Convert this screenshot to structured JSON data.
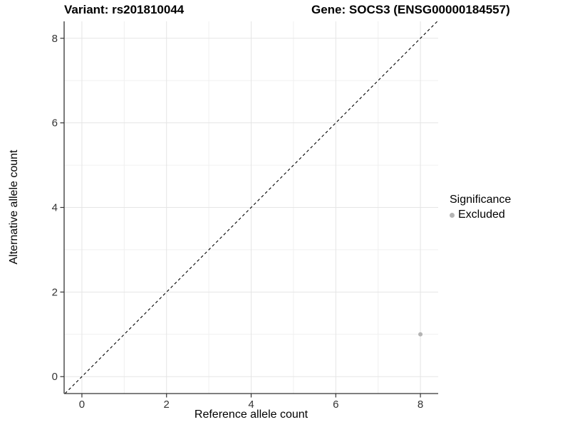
{
  "titles": {
    "variant": "Variant: rs201810044",
    "gene": "Gene: SOCS3 (ENSG00000184557)"
  },
  "legend": {
    "title": "Significance",
    "items": [
      {
        "label": "Excluded",
        "color": "#b4b4b4"
      }
    ]
  },
  "chart_data": {
    "type": "scatter",
    "title": "",
    "xlabel": "Reference allele count",
    "ylabel": "Alternative allele count",
    "xlim": [
      -0.42,
      8.42
    ],
    "ylim": [
      -0.4,
      8.4
    ],
    "x_ticks": [
      0,
      2,
      4,
      6,
      8
    ],
    "y_ticks": [
      0,
      2,
      4,
      6,
      8
    ],
    "x_minor_gridlines": [
      1,
      3,
      5,
      7
    ],
    "y_minor_gridlines": [
      1,
      3,
      5,
      7
    ],
    "grid": true,
    "legend_position": "right",
    "series": [
      {
        "name": "Excluded",
        "color": "#b4b4b4",
        "points": [
          {
            "x": 8,
            "y": 1
          }
        ]
      }
    ],
    "abline": {
      "slope": 1,
      "intercept": 0,
      "style": "dashed",
      "color": "#000000"
    }
  },
  "colors": {
    "background": "#ffffff",
    "grid_major": "#e5e5e5",
    "grid_minor": "#f0f0f0",
    "axis_line": "#333333",
    "tick_label": "#333333",
    "point": "#b4b4b4"
  }
}
